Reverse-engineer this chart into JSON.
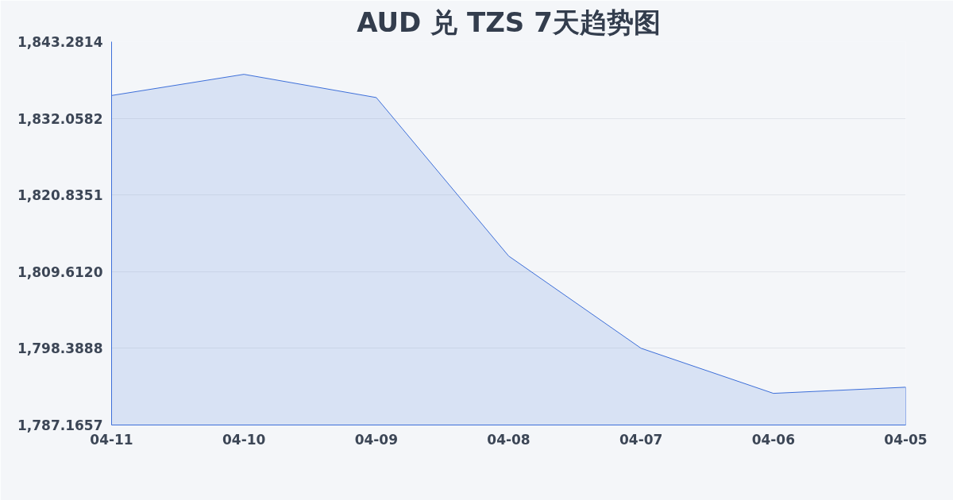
{
  "chart_data": {
    "type": "area",
    "title": "AUD 兑 TZS 7天趋势图",
    "categories": [
      "04-11",
      "04-10",
      "04-09",
      "04-08",
      "04-07",
      "04-06",
      "04-05"
    ],
    "series": [
      {
        "color": "#3d6fd9",
        "values": [
          1835.4,
          1838.5,
          1835.1,
          1811.9,
          1798.4,
          1791.8,
          1792.7
        ]
      }
    ],
    "ylim": [
      1787.1657,
      1843.2814
    ],
    "yticks": [
      {
        "value": 1787.1657,
        "label": "1,787.1657"
      },
      {
        "value": 1798.3888,
        "label": "1,798.3888"
      },
      {
        "value": 1809.612,
        "label": "1,809.6120"
      },
      {
        "value": 1820.8351,
        "label": "1,820.8351"
      },
      {
        "value": 1832.0582,
        "label": "1,832.0582"
      },
      {
        "value": 1843.2814,
        "label": "1,843.2814"
      }
    ],
    "grid": "y"
  }
}
